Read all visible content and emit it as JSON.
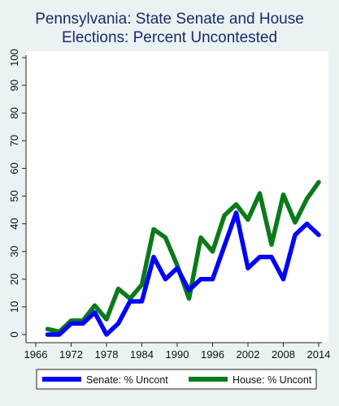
{
  "chart_data": {
    "type": "line",
    "title_lines": [
      "Pennsylvania: State Senate and House",
      "Elections: Percent Uncontested"
    ],
    "xlabel": "",
    "ylabel": "",
    "x_ticks": [
      1966,
      1972,
      1978,
      1984,
      1990,
      1996,
      2002,
      2008,
      2014
    ],
    "y_ticks": [
      0,
      10,
      20,
      30,
      40,
      50,
      60,
      70,
      80,
      90,
      100
    ],
    "xlim": [
      1966,
      2014
    ],
    "ylim": [
      0,
      100
    ],
    "grid": false,
    "legend_position": "bottom",
    "series": [
      {
        "name": "Senate: % Uncont",
        "color": "#0000ff",
        "x": [
          1968,
          1970,
          1972,
          1974,
          1976,
          1978,
          1980,
          1982,
          1984,
          1986,
          1988,
          1990,
          1992,
          1994,
          1996,
          1998,
          2000,
          2002,
          2004,
          2006,
          2008,
          2010,
          2012,
          2014
        ],
        "y": [
          0,
          0,
          4,
          4,
          8,
          0,
          4,
          12,
          12,
          28,
          20,
          24,
          16,
          20,
          20,
          32,
          44,
          24,
          28,
          28,
          20,
          36,
          40,
          36
        ]
      },
      {
        "name": "House: % Uncont",
        "color": "#0a7a1a",
        "x": [
          1968,
          1970,
          1972,
          1974,
          1976,
          1978,
          1980,
          1982,
          1984,
          1986,
          1988,
          1990,
          1992,
          1994,
          1996,
          1998,
          2000,
          2002,
          2004,
          2006,
          2008,
          2010,
          2012,
          2014
        ],
        "y": [
          2,
          1,
          5,
          5,
          10.5,
          5.5,
          16.5,
          13,
          18,
          38,
          35,
          25,
          13,
          35,
          30,
          43,
          47,
          41.5,
          51,
          32.5,
          50.5,
          40.5,
          49,
          55
        ]
      }
    ]
  }
}
